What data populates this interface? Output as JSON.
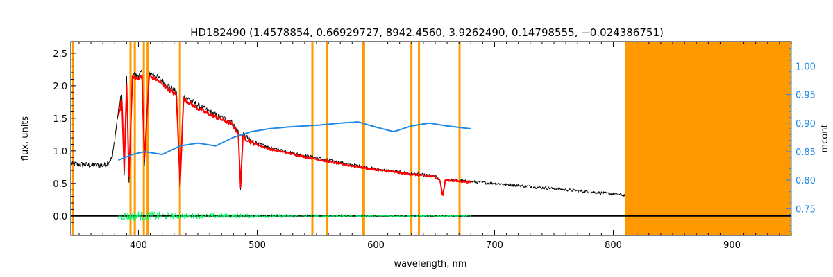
{
  "chart_data": {
    "type": "line",
    "title": "HD182490    (1.4578854, 0.66929727, 8942.4560, 3.9262490, 0.14798555, −0.024386751)",
    "xlabel": "wavelength, nm",
    "ylabel": "flux, units",
    "y2label": "mcont",
    "xlim": [
      343,
      950
    ],
    "ylim": [
      -0.3,
      2.68
    ],
    "y2lim": [
      0.703,
      1.043
    ],
    "xticks": [
      "400",
      "500",
      "600",
      "700",
      "800",
      "900"
    ],
    "xtick_values": [
      400,
      500,
      600,
      700,
      800,
      900
    ],
    "yticks": [
      "0.0",
      "0.5",
      "1.0",
      "1.5",
      "2.0",
      "2.5"
    ],
    "ytick_values": [
      0.0,
      0.5,
      1.0,
      1.5,
      2.0,
      2.5
    ],
    "y2ticks": [
      "0.75",
      "0.80",
      "0.85",
      "0.90",
      "0.95",
      "1.00"
    ],
    "y2tick_values": [
      0.75,
      0.8,
      0.85,
      0.9,
      0.95,
      1.0
    ],
    "grid": false,
    "colors": {
      "observed": "#000000",
      "model": "#ff0000",
      "continuum": "#1e88e5",
      "residual": "#00ff66",
      "masks": "#ff9900",
      "right_axis": "#1e88e5"
    },
    "masked_region": {
      "x_start": 810,
      "x_end": 950
    },
    "masked_lines": [
      345,
      393.3,
      396.9,
      404.5,
      407.7,
      434.9,
      546.5,
      558.5,
      588.9,
      590.0,
      629.9,
      636.3,
      670.5
    ],
    "series": [
      {
        "key": "observed",
        "x": [
          343,
          360,
          372,
          378,
          383,
          386,
          388,
          390,
          392,
          395,
          398,
          403,
          405,
          409,
          415,
          425,
          432,
          435,
          438,
          450,
          465,
          478,
          484,
          486,
          488,
          495,
          510,
          540,
          570,
          600,
          630,
          650,
          654,
          656.3,
          658.5,
          665,
          700,
          750,
          780,
          810
        ],
        "y": [
          0.8,
          0.78,
          0.78,
          0.9,
          1.6,
          1.9,
          0.6,
          2.1,
          0.5,
          2.2,
          2.15,
          2.2,
          0.8,
          2.2,
          2.15,
          2.0,
          1.9,
          0.45,
          1.85,
          1.7,
          1.55,
          1.45,
          1.3,
          0.4,
          1.25,
          1.15,
          1.05,
          0.93,
          0.82,
          0.72,
          0.65,
          0.61,
          0.55,
          0.27,
          0.55,
          0.55,
          0.5,
          0.42,
          0.37,
          0.32
        ]
      },
      {
        "key": "model",
        "x": [
          383,
          386,
          388,
          390,
          392,
          395,
          398,
          403,
          405,
          409,
          415,
          425,
          432,
          435,
          438,
          450,
          465,
          478,
          484,
          486,
          488,
          495,
          510,
          540,
          570,
          600,
          630,
          650,
          654,
          656.3,
          658.5,
          665,
          680
        ],
        "y": [
          1.5,
          1.8,
          0.7,
          2.05,
          0.6,
          2.15,
          2.1,
          2.15,
          0.85,
          2.15,
          2.1,
          1.95,
          1.85,
          0.5,
          1.8,
          1.65,
          1.52,
          1.42,
          1.28,
          0.45,
          1.22,
          1.13,
          1.03,
          0.91,
          0.8,
          0.71,
          0.64,
          0.6,
          0.55,
          0.3,
          0.55,
          0.54,
          0.52
        ]
      },
      {
        "key": "continuum",
        "axis": "right",
        "x": [
          383,
          395,
          405,
          420,
          435,
          450,
          465,
          480,
          495,
          510,
          525,
          540,
          555,
          570,
          585,
          600,
          615,
          630,
          645,
          660,
          680
        ],
        "y": [
          0.835,
          0.845,
          0.85,
          0.845,
          0.86,
          0.865,
          0.86,
          0.875,
          0.885,
          0.89,
          0.893,
          0.895,
          0.897,
          0.9,
          0.902,
          0.893,
          0.885,
          0.895,
          0.9,
          0.895,
          0.89
        ]
      },
      {
        "key": "residual",
        "x": [
          383,
          400,
          420,
          440,
          460,
          480,
          500,
          550,
          600,
          650,
          680
        ],
        "y": [
          0.0,
          0.0,
          0.0,
          0.0,
          0.0,
          0.0,
          0.0,
          0.0,
          0.0,
          0.0,
          0.0
        ],
        "amplitude": [
          0.06,
          0.08,
          0.06,
          0.04,
          0.04,
          0.035,
          0.03,
          0.025,
          0.02,
          0.02,
          0.015
        ]
      },
      {
        "key": "zero_line",
        "x": [
          343,
          950
        ],
        "y": [
          0.0,
          0.0
        ]
      }
    ]
  }
}
